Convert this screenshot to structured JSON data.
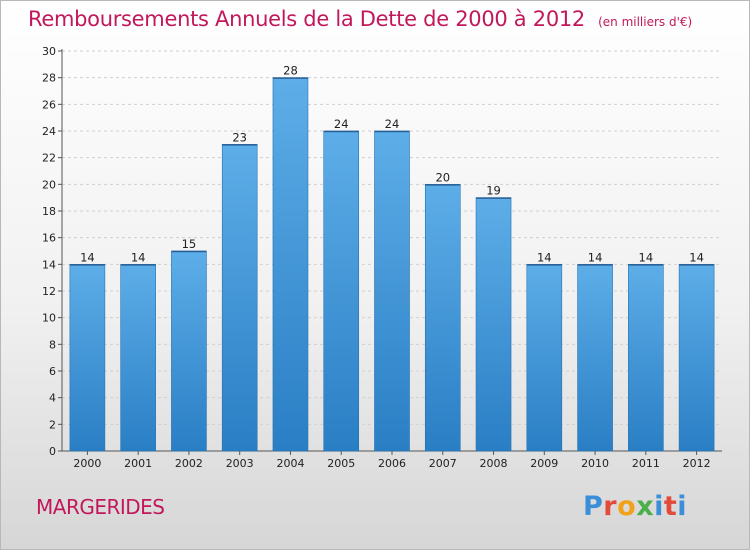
{
  "header": {
    "title": "Remboursements Annuels de la Dette de 2000 à 2012",
    "subtitle": "(en milliers d'€)"
  },
  "footer": {
    "commune": "MARGERIDES",
    "logo_text": "Proxiti"
  },
  "colors": {
    "title": "#c2185b",
    "bar_top": "#5daee8",
    "bar_bottom": "#2a7ec4",
    "logo_letters": [
      "#3b8fd9",
      "#e24a3c",
      "#f2a11b",
      "#4bb04a",
      "#3b8fd9",
      "#e24a3c",
      "#3b8fd9"
    ]
  },
  "chart_data": {
    "type": "bar",
    "categories": [
      "2000",
      "2001",
      "2002",
      "2003",
      "2004",
      "2005",
      "2006",
      "2007",
      "2008",
      "2009",
      "2010",
      "2011",
      "2012"
    ],
    "values": [
      14,
      14,
      15,
      23,
      28,
      24,
      24,
      20,
      19,
      14,
      14,
      14,
      14
    ],
    "title": "Remboursements Annuels de la Dette de 2000 à 2012",
    "subtitle": "(en milliers d'€)",
    "xlabel": "",
    "ylabel": "",
    "ylim": [
      0,
      30
    ],
    "yticks": [
      0,
      2,
      4,
      6,
      8,
      10,
      12,
      14,
      16,
      18,
      20,
      22,
      24,
      26,
      28,
      30
    ],
    "grid": "horizontal",
    "data_labels": true
  }
}
